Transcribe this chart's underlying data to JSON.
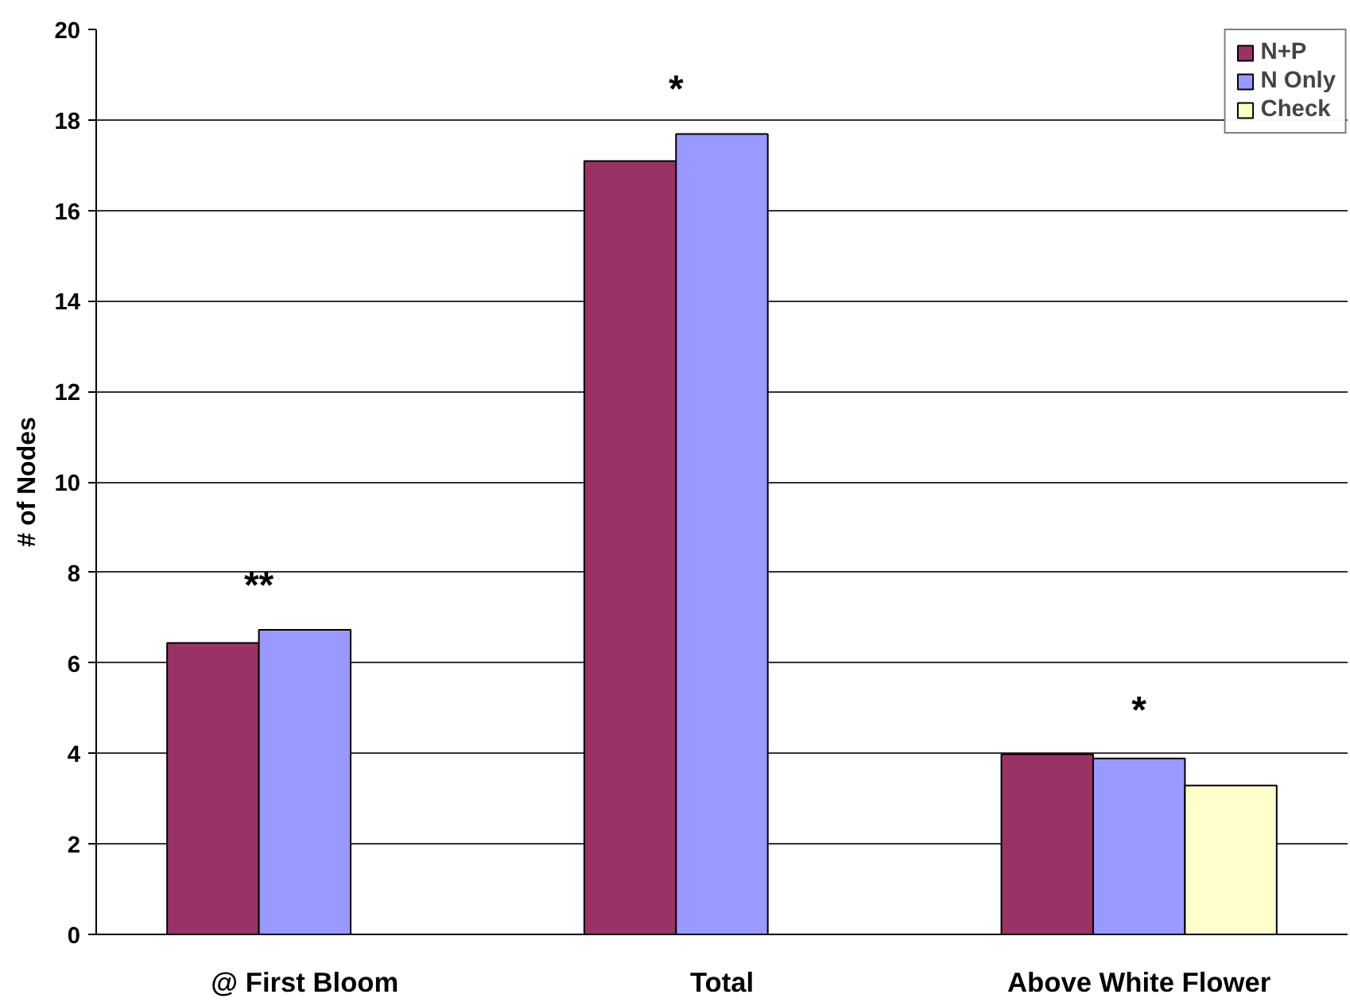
{
  "chart_data": {
    "type": "bar",
    "ylabel": "# of Nodes",
    "categories": [
      "@ First Bloom",
      "Total",
      "Above White Flower"
    ],
    "series": [
      {
        "name": "N+P",
        "color": "#993366",
        "values": [
          6.44,
          17.09,
          3.98
        ]
      },
      {
        "name": "N Only",
        "color": "#9999ff",
        "values": [
          6.73,
          17.69,
          3.89
        ]
      },
      {
        "name": "Check",
        "color": "#ffffcc",
        "values": [
          null,
          null,
          3.29
        ]
      }
    ],
    "annotations": [
      "**",
      "*",
      "*"
    ],
    "ylim": [
      0,
      20
    ],
    "yticks": [
      0,
      2,
      4,
      6,
      8,
      10,
      12,
      14,
      16,
      18,
      20
    ],
    "grid": "y",
    "legend": "top right"
  }
}
